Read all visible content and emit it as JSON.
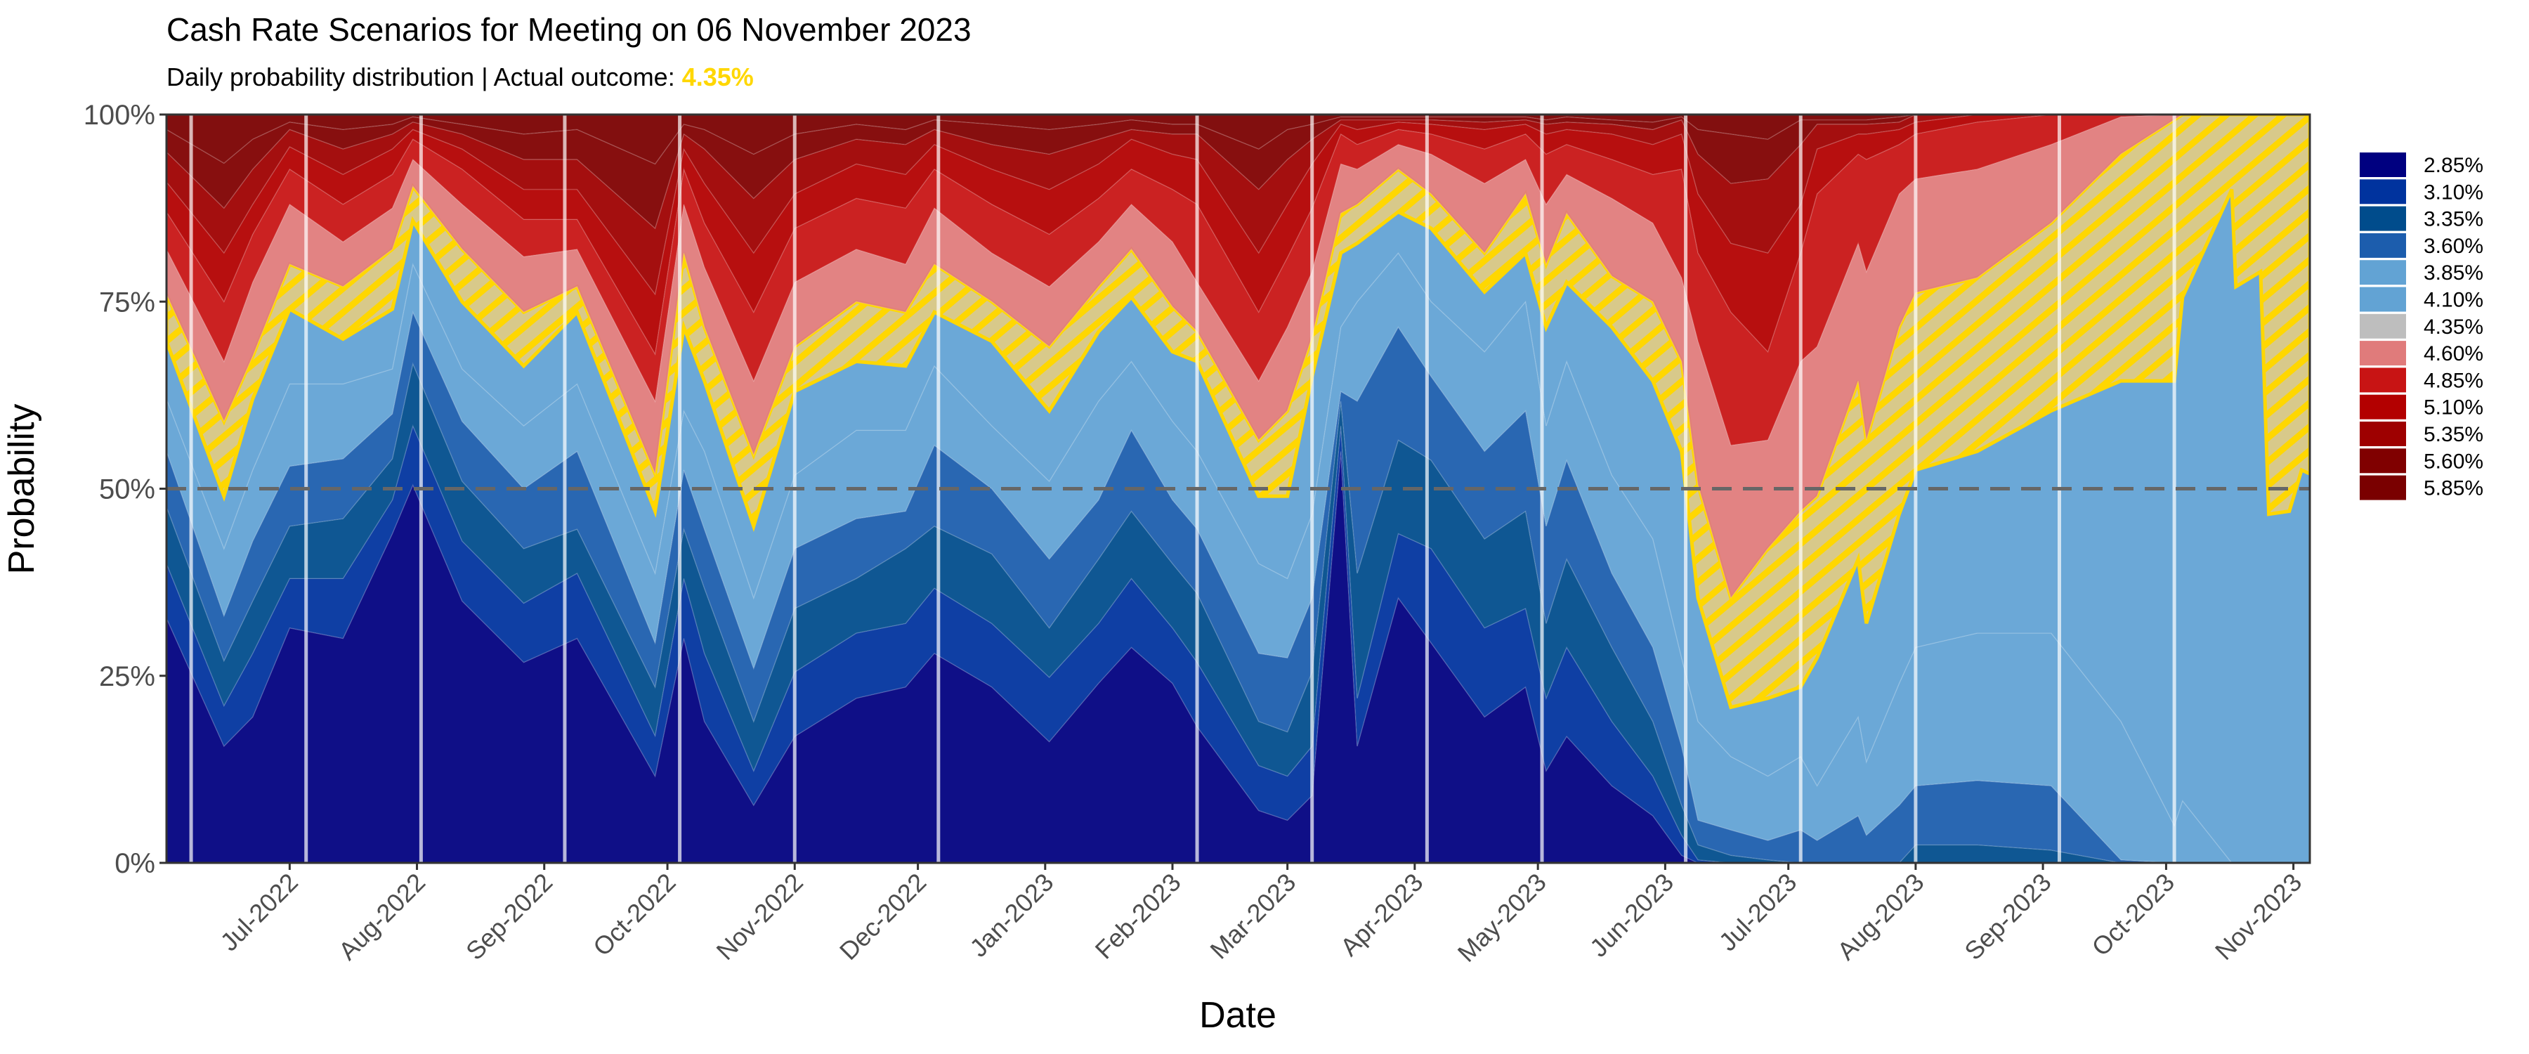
{
  "chart_data": {
    "type": "area",
    "stacked": true,
    "title": "Cash Rate Scenarios for Meeting on 06 November 2023",
    "subtitle_prefix": "Daily probability distribution | Actual outcome: ",
    "subtitle_highlight": "4.35%",
    "highlight_color": "#FFD700",
    "xlabel": "Date",
    "ylabel": "Probability",
    "ylim": [
      0,
      100
    ],
    "xlim": [
      "2022-06-01",
      "2023-11-05"
    ],
    "y_ticks": [
      0,
      25,
      50,
      75,
      100
    ],
    "y_tick_labels": [
      "0%",
      "25%",
      "50%",
      "75%",
      "100%"
    ],
    "x_tick_labels": [
      "Jul-2022",
      "Aug-2022",
      "Sep-2022",
      "Oct-2022",
      "Nov-2022",
      "Dec-2022",
      "Jan-2023",
      "Feb-2023",
      "Mar-2023",
      "Apr-2023",
      "May-2023",
      "Jun-2023",
      "Jul-2023",
      "Aug-2023",
      "Sep-2023",
      "Oct-2023",
      "Nov-2023"
    ],
    "x_tick_dates": [
      "2022-07-01",
      "2022-08-01",
      "2022-09-01",
      "2022-10-01",
      "2022-11-01",
      "2022-12-01",
      "2023-01-01",
      "2023-02-01",
      "2023-03-01",
      "2023-04-01",
      "2023-05-01",
      "2023-06-01",
      "2023-07-01",
      "2023-08-01",
      "2023-09-01",
      "2023-10-01",
      "2023-11-01"
    ],
    "reference_line": {
      "y": 50,
      "style": "dashed"
    },
    "meeting_dates": [
      "2022-06-07",
      "2022-07-05",
      "2022-08-02",
      "2022-09-06",
      "2022-10-04",
      "2022-11-01",
      "2022-12-06",
      "2023-02-07",
      "2023-03-07",
      "2023-04-04",
      "2023-05-02",
      "2023-06-06",
      "2023-07-04",
      "2023-08-01",
      "2023-09-05",
      "2023-10-03"
    ],
    "legend_position": "right",
    "series": [
      {
        "name": "2.85%",
        "color": "#000080"
      },
      {
        "name": "3.10%",
        "color": "#00339E"
      },
      {
        "name": "3.35%",
        "color": "#004C8C"
      },
      {
        "name": "3.60%",
        "color": "#1C5DAD"
      },
      {
        "name": "3.85%",
        "color": "#62A3D4"
      },
      {
        "name": "4.10%",
        "color": "#62A3D4"
      },
      {
        "name": "4.35%",
        "color": "#BEBEBE",
        "highlighted": true
      },
      {
        "name": "4.60%",
        "color": "#E07B7B"
      },
      {
        "name": "4.85%",
        "color": "#C81414"
      },
      {
        "name": "5.10%",
        "color": "#B30000"
      },
      {
        "name": "5.35%",
        "color": "#9E0000"
      },
      {
        "name": "5.60%",
        "color": "#800000"
      },
      {
        "name": "5.85%",
        "color": "#7A0000"
      }
    ],
    "cumulative_note": "cumulative probability (%) up to and including each rate from 2.85% to 5.60%; 5.85% fills to 100",
    "points": [
      {
        "date": "2022-06-01",
        "cum": [
          32.7,
          40,
          47.6,
          55,
          62,
          69.7,
          76,
          82,
          87,
          91,
          95,
          98
        ]
      },
      {
        "date": "2022-06-15",
        "cum": [
          15.6,
          21,
          27,
          33,
          42,
          49,
          59,
          67,
          75,
          81.5,
          87.5,
          93.5
        ]
      },
      {
        "date": "2022-06-22",
        "cum": [
          19.5,
          28,
          35,
          43,
          52.5,
          62,
          67.7,
          77.6,
          84,
          88,
          92.7,
          96.7
        ]
      },
      {
        "date": "2022-07-01",
        "cum": [
          31.4,
          38,
          45,
          53,
          64,
          74,
          80,
          88,
          92.7,
          95.7,
          98,
          99
        ]
      },
      {
        "date": "2022-07-14",
        "cum": [
          30,
          38,
          46,
          54,
          64,
          70,
          77,
          83,
          88,
          92,
          95.4,
          98
        ]
      },
      {
        "date": "2022-07-26",
        "cum": [
          44,
          48.5,
          54,
          60,
          66,
          74,
          82,
          87.5,
          92,
          95.4,
          97.4,
          98.7
        ]
      },
      {
        "date": "2022-07-31",
        "cum": [
          50.5,
          58.4,
          66.7,
          73.6,
          80,
          85.8,
          90.4,
          94,
          96.7,
          98,
          99,
          99.7
        ]
      },
      {
        "date": "2022-08-12",
        "cum": [
          35,
          43,
          51,
          59,
          66,
          75,
          82,
          88,
          92.7,
          95.4,
          97.4,
          98.7
        ]
      },
      {
        "date": "2022-08-27",
        "cum": [
          26.8,
          34.7,
          42,
          50,
          58.4,
          66.4,
          73.6,
          81,
          86,
          90,
          94,
          97.4
        ]
      },
      {
        "date": "2022-09-09",
        "cum": [
          30,
          38.7,
          44.6,
          55,
          64,
          73.6,
          77,
          82,
          86,
          90,
          94,
          98
        ]
      },
      {
        "date": "2022-09-28",
        "cum": [
          11.6,
          17,
          23.5,
          29.4,
          38.7,
          47,
          52,
          61.7,
          68,
          76,
          84.8,
          93.4
        ]
      },
      {
        "date": "2022-10-05",
        "cum": [
          30,
          38,
          44.6,
          52.5,
          60.4,
          71.6,
          81.5,
          88,
          92.7,
          95.4,
          97.4,
          98.7
        ]
      },
      {
        "date": "2022-10-10",
        "cum": [
          18.9,
          28,
          36.7,
          44.6,
          55,
          64.4,
          71.6,
          79.6,
          85.5,
          90.8,
          95.4,
          98
        ]
      },
      {
        "date": "2022-10-22",
        "cum": [
          7.7,
          12.3,
          18.9,
          26,
          35.4,
          45,
          54.5,
          64.4,
          73.6,
          81.5,
          88.8,
          94.7
        ]
      },
      {
        "date": "2022-11-01",
        "cum": [
          16.9,
          25.5,
          34,
          42,
          51.8,
          63,
          69,
          77.6,
          84.8,
          89.4,
          94,
          97.4
        ]
      },
      {
        "date": "2022-11-16",
        "cum": [
          22,
          30.7,
          38,
          46,
          57.8,
          67,
          75,
          82,
          88.8,
          93.4,
          96.7,
          98.7
        ]
      },
      {
        "date": "2022-11-28",
        "cum": [
          23.5,
          32,
          42,
          47,
          57.8,
          66.4,
          73.6,
          80,
          87.5,
          92,
          96,
          98
        ]
      },
      {
        "date": "2022-12-05",
        "cum": [
          28,
          36.7,
          45,
          55.8,
          66.4,
          73.6,
          80,
          87.5,
          92.7,
          96,
          98,
          99.3
        ]
      },
      {
        "date": "2022-12-19",
        "cum": [
          23.5,
          32,
          41.3,
          50,
          58.4,
          69.7,
          75,
          81.5,
          88,
          92.7,
          96,
          98.7
        ]
      },
      {
        "date": "2023-01-02",
        "cum": [
          16.2,
          24.8,
          31.4,
          40.6,
          51,
          60.4,
          69,
          77,
          84,
          90,
          94.7,
          98
        ]
      },
      {
        "date": "2023-01-14",
        "cum": [
          24,
          32,
          40.6,
          48.5,
          61.7,
          71,
          77,
          83,
          88.8,
          93.4,
          96.7,
          98.7
        ]
      },
      {
        "date": "2023-01-22",
        "cum": [
          28.8,
          38,
          47,
          57.8,
          67,
          75.6,
          82,
          88,
          92.7,
          96.7,
          98,
          99.3
        ]
      },
      {
        "date": "2023-02-01",
        "cum": [
          24,
          31.4,
          40,
          48.5,
          59,
          68.3,
          74.3,
          83,
          90,
          94.7,
          97.4,
          98.7
        ]
      },
      {
        "date": "2023-02-07",
        "cum": [
          18.2,
          26.8,
          36,
          44.6,
          55,
          67,
          71,
          77.6,
          88,
          94,
          97.4,
          98.7
        ]
      },
      {
        "date": "2023-02-22",
        "cum": [
          7,
          13,
          18.9,
          28,
          40,
          49,
          56.5,
          64.4,
          73.6,
          81.5,
          90,
          95.4
        ]
      },
      {
        "date": "2023-03-01",
        "cum": [
          5.7,
          11.6,
          17.5,
          27.4,
          38,
          49,
          60.4,
          71.6,
          80.9,
          88,
          94,
          98
        ]
      },
      {
        "date": "2023-03-07",
        "cum": [
          9,
          15.6,
          25.5,
          35.4,
          46.6,
          65,
          70.3,
          79,
          87.5,
          93.4,
          96.7,
          98.7
        ]
      },
      {
        "date": "2023-03-14",
        "cum": [
          55,
          58.4,
          61.7,
          63,
          71.6,
          81.5,
          86.8,
          93.4,
          97.4,
          98.7,
          99.3,
          99.7
        ]
      },
      {
        "date": "2023-03-18",
        "cum": [
          15.6,
          22,
          38.7,
          61.7,
          75,
          82.8,
          88,
          92.7,
          96,
          98,
          99.3,
          99.7
        ]
      },
      {
        "date": "2023-03-28",
        "cum": [
          35.4,
          44,
          56.5,
          71.6,
          81.5,
          87,
          92.7,
          96,
          98,
          99,
          99.3,
          99.7
        ]
      },
      {
        "date": "2023-04-05",
        "cum": [
          29.4,
          42,
          53.8,
          65,
          75,
          84.8,
          89.4,
          94.7,
          97.4,
          98.7,
          99.3,
          99.7
        ]
      },
      {
        "date": "2023-04-18",
        "cum": [
          19.5,
          31.4,
          43.3,
          55,
          68.3,
          76.3,
          81.5,
          90.8,
          95.4,
          98,
          99,
          99.7
        ]
      },
      {
        "date": "2023-04-28",
        "cum": [
          23.5,
          34,
          47,
          60.4,
          75,
          81.5,
          89.4,
          94,
          97.4,
          98.7,
          99.3,
          99.7
        ]
      },
      {
        "date": "2023-05-03",
        "cum": [
          12.3,
          22,
          32,
          45,
          58.4,
          71.6,
          80,
          88,
          94.7,
          97.4,
          98.7,
          99.3
        ]
      },
      {
        "date": "2023-05-08",
        "cum": [
          16.9,
          28.8,
          40.6,
          53.8,
          67,
          77.6,
          86.8,
          92,
          96,
          98,
          99,
          99.7
        ]
      },
      {
        "date": "2023-05-19",
        "cum": [
          10.3,
          18.9,
          28.8,
          38.7,
          51.8,
          71.6,
          78.4,
          88.8,
          94,
          97.4,
          98.7,
          99.3
        ]
      },
      {
        "date": "2023-05-29",
        "cum": [
          6.3,
          11.6,
          18.9,
          28.8,
          43.3,
          64.4,
          75,
          85.5,
          92,
          96,
          98,
          99
        ]
      },
      {
        "date": "2023-06-05",
        "cum": [
          1,
          3.7,
          7.7,
          15.6,
          27.4,
          55,
          67,
          78.2,
          92.7,
          97.4,
          99.3,
          99.7
        ]
      },
      {
        "date": "2023-06-09",
        "cum": [
          0,
          0.4,
          2.4,
          5.7,
          18.9,
          35.4,
          50.5,
          69.7,
          81.5,
          89.4,
          94.7,
          98
        ]
      },
      {
        "date": "2023-06-17",
        "cum": [
          0,
          0,
          1,
          4.4,
          14.2,
          20.8,
          35.4,
          55.8,
          73.6,
          82.8,
          90.8,
          97.4
        ]
      },
      {
        "date": "2023-06-26",
        "cum": [
          0,
          0,
          0.4,
          3,
          11.6,
          22,
          42,
          56.5,
          68.3,
          81.5,
          91.4,
          96.7
        ]
      },
      {
        "date": "2023-07-04",
        "cum": [
          0,
          0,
          0,
          4.4,
          14.2,
          23.5,
          47,
          67,
          81.5,
          88,
          96,
          99.3
        ]
      },
      {
        "date": "2023-07-08",
        "cum": [
          0,
          0,
          0,
          3,
          10.3,
          27.4,
          49,
          69,
          89.4,
          95.4,
          98.7,
          99.3
        ]
      },
      {
        "date": "2023-07-18",
        "cum": [
          0,
          0,
          0,
          6.3,
          19.5,
          40.6,
          64.4,
          82.8,
          94.7,
          97.4,
          98.7,
          99.3
        ]
      },
      {
        "date": "2023-07-20",
        "cum": [
          0,
          0,
          0,
          3.7,
          13.5,
          32,
          56.5,
          79,
          94,
          97.4,
          98.7,
          99.3
        ]
      },
      {
        "date": "2023-07-28",
        "cum": [
          0,
          0,
          0,
          7.7,
          24,
          46.6,
          71.6,
          89.4,
          96,
          98,
          99,
          99.7
        ]
      },
      {
        "date": "2023-08-01",
        "cum": [
          0,
          0,
          2.4,
          10.3,
          28.8,
          52.5,
          76.2,
          91.4,
          97.4,
          99,
          100,
          100
        ]
      },
      {
        "date": "2023-08-16",
        "cum": [
          0,
          0,
          2.4,
          11,
          30.7,
          55,
          78.2,
          92.7,
          99,
          100,
          100,
          100
        ]
      },
      {
        "date": "2023-09-03",
        "cum": [
          0,
          0,
          1.7,
          10.3,
          30.7,
          60.4,
          85.5,
          96,
          100,
          100,
          100,
          100
        ]
      },
      {
        "date": "2023-09-20",
        "cum": [
          0,
          0,
          0,
          0.4,
          18.9,
          64.4,
          94.7,
          99.7,
          100,
          100,
          100,
          100
        ]
      },
      {
        "date": "2023-10-03",
        "cum": [
          0,
          0,
          0,
          0,
          5,
          64.4,
          99.3,
          100,
          100,
          100,
          100,
          100
        ]
      },
      {
        "date": "2023-10-05",
        "cum": [
          0,
          0,
          0,
          0,
          8.3,
          75.6,
          100,
          100,
          100,
          100,
          100,
          100
        ]
      },
      {
        "date": "2023-10-17",
        "cum": [
          0,
          0,
          0,
          0,
          0,
          90,
          100,
          100,
          100,
          100,
          100,
          100
        ]
      },
      {
        "date": "2023-10-18",
        "cum": [
          0,
          0,
          0,
          0,
          0,
          77,
          100,
          100,
          100,
          100,
          100,
          100
        ]
      },
      {
        "date": "2023-10-24",
        "cum": [
          0,
          0,
          0,
          0,
          0,
          79,
          100,
          100,
          100,
          100,
          100,
          100
        ]
      },
      {
        "date": "2023-10-26",
        "cum": [
          0,
          0,
          0,
          0,
          0,
          46.6,
          100,
          100,
          100,
          100,
          100,
          100
        ]
      },
      {
        "date": "2023-10-31",
        "cum": [
          0,
          0,
          0,
          0,
          0,
          47,
          100,
          100,
          100,
          100,
          100,
          100
        ]
      },
      {
        "date": "2023-11-03",
        "cum": [
          0,
          0,
          0,
          0,
          0,
          52.5,
          100,
          100,
          100,
          100,
          100,
          100
        ]
      },
      {
        "date": "2023-11-05",
        "cum": [
          0,
          0,
          0,
          0,
          0,
          52,
          100,
          100,
          100,
          100,
          100,
          100
        ]
      }
    ]
  }
}
